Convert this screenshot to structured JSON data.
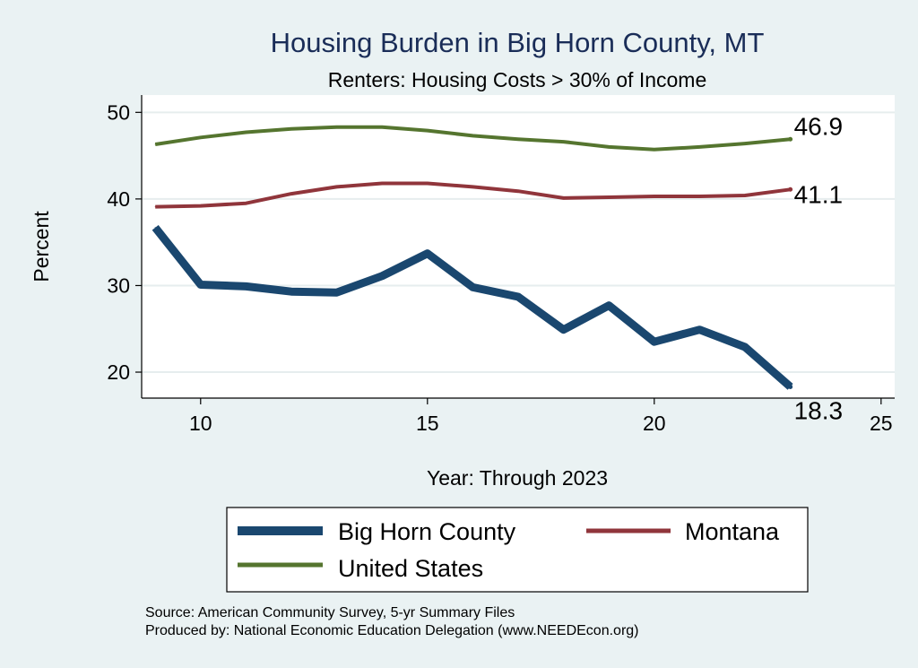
{
  "chart_data": {
    "type": "line",
    "title": "Housing Burden in Big Horn County, MT",
    "subtitle": "Renters: Housing Costs > 30% of Income",
    "xlabel": "Year: Through 2023",
    "ylabel": "Percent",
    "xlim": [
      8.7,
      25.3
    ],
    "ylim": [
      17,
      52
    ],
    "xticks": [
      10,
      15,
      20,
      25
    ],
    "yticks": [
      20,
      30,
      40,
      50
    ],
    "grid": true,
    "legend_position": "bottom",
    "x": [
      9,
      10,
      11,
      12,
      13,
      14,
      15,
      16,
      17,
      18,
      19,
      20,
      21,
      22,
      23
    ],
    "series": [
      {
        "name": "Big Horn County",
        "color": "#1a476f",
        "values": [
          36.7,
          30.1,
          29.9,
          29.3,
          29.2,
          31.1,
          33.7,
          29.8,
          28.7,
          24.9,
          27.7,
          23.5,
          24.9,
          22.9,
          18.3
        ],
        "end_label": "18.3"
      },
      {
        "name": "Montana",
        "color": "#90353b",
        "values": [
          39.1,
          39.2,
          39.5,
          40.6,
          41.4,
          41.8,
          41.8,
          41.4,
          40.9,
          40.1,
          40.2,
          40.3,
          40.3,
          40.4,
          41.1
        ],
        "end_label": "41.1"
      },
      {
        "name": "United States",
        "color": "#55752f",
        "values": [
          46.3,
          47.1,
          47.7,
          48.1,
          48.3,
          48.3,
          47.9,
          47.3,
          46.9,
          46.6,
          46.0,
          45.7,
          46.0,
          46.4,
          46.9
        ],
        "end_label": "46.9"
      }
    ],
    "notes": [
      "Source: American Community Survey, 5-yr Summary Files",
      "Produced by: National Economic Education Delegation (www.NEEDEcon.org)"
    ]
  }
}
